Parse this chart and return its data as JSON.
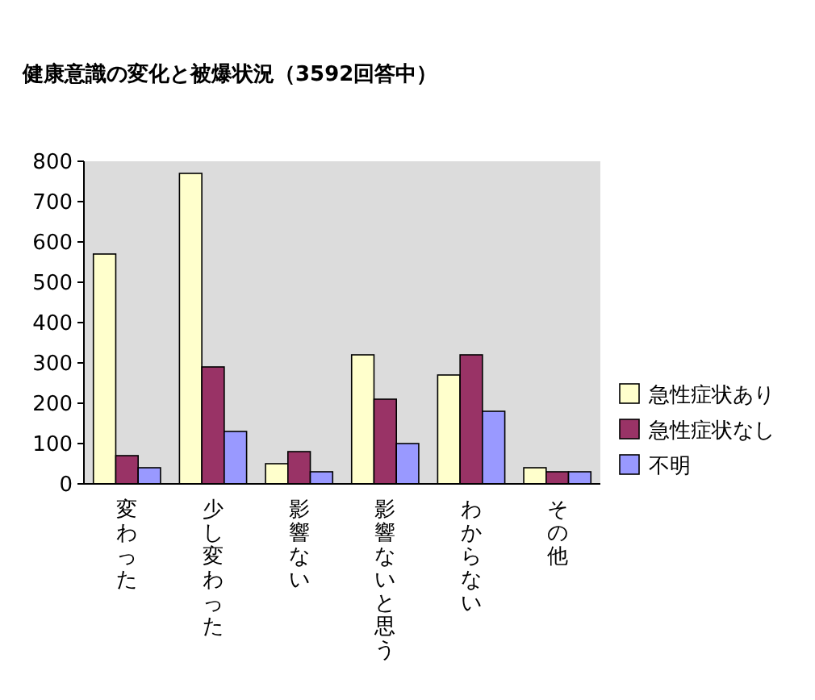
{
  "chart_data": {
    "type": "bar",
    "title": "健康意識の変化と被爆状況（3592回答中）",
    "categories": [
      "変わった",
      "少し変わった",
      "影響ない",
      "影響ないと思う",
      "わからない",
      "その他"
    ],
    "series": [
      {
        "name": "急性症状あり",
        "color": "#ffffcc",
        "values": [
          570,
          770,
          50,
          320,
          270,
          40
        ]
      },
      {
        "name": "急性症状なし",
        "color": "#993366",
        "values": [
          70,
          290,
          80,
          210,
          320,
          30
        ]
      },
      {
        "name": "不明",
        "color": "#9999ff",
        "values": [
          40,
          130,
          30,
          100,
          180,
          30
        ]
      }
    ],
    "ylim": [
      0,
      800
    ],
    "yticks": [
      0,
      100,
      200,
      300,
      400,
      500,
      600,
      700,
      800
    ],
    "legend": "right"
  }
}
